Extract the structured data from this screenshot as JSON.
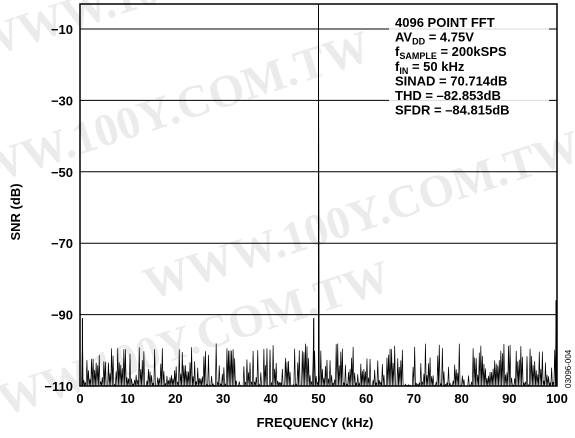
{
  "chart_data": {
    "type": "line",
    "title": "",
    "xlabel": "FREQUENCY (kHz)",
    "ylabel": "SNR (dB)",
    "xlim": [
      0,
      100
    ],
    "ylim": [
      -110,
      -3
    ],
    "x_ticks": [
      0,
      10,
      20,
      30,
      40,
      50,
      60,
      70,
      80,
      90,
      100
    ],
    "y_ticks": [
      -10,
      -30,
      -50,
      -70,
      -90,
      -110
    ],
    "grid": "horizontal",
    "noise_floor_range": [
      -110,
      -98
    ],
    "peaks": [
      {
        "x": 0.5,
        "y": -91
      },
      {
        "x": 49,
        "y": -91
      },
      {
        "x": 50,
        "y": -3
      },
      {
        "x": 99.8,
        "y": -86
      }
    ],
    "series_color": "#000000",
    "annotation": {
      "lines": [
        {
          "main": "4096 POINT FFT"
        },
        {
          "main": "AV",
          "sub": "DD",
          "rest": " = 4.75V"
        },
        {
          "main": "f",
          "sub": "SAMPLE",
          "rest": " = 200kSPS"
        },
        {
          "main": "f",
          "sub": "IN",
          "rest": " = 50 kHz"
        },
        {
          "main": "SINAD = 70.714dB"
        },
        {
          "main": "THD = –82.853dB"
        },
        {
          "main": "SFDR = –84.815dB"
        }
      ]
    },
    "figure_id": "03096-004"
  },
  "watermark": {
    "lines": [
      "WWW.100Y.COM.TW",
      "WWW.100Y.COM.TW",
      "WWW.100Y.COM.TW",
      "WWW.100Y.COM.TW"
    ]
  }
}
